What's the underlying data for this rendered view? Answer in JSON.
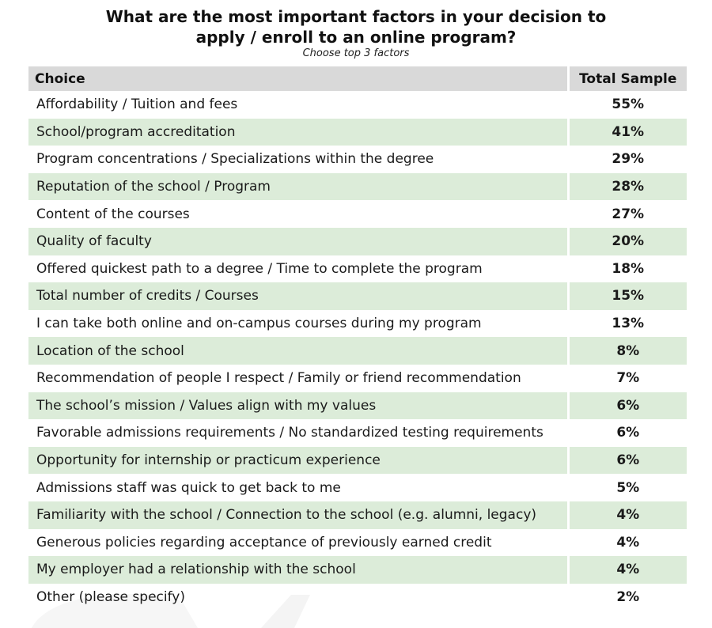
{
  "title_line1": "What are the most important factors in your decision to",
  "title_line2": "apply / enroll to an online program?",
  "subtitle": "Choose top 3 factors",
  "chart_data": {
    "type": "table",
    "columns": [
      "Choice",
      "Total Sample"
    ],
    "rows": [
      {
        "choice": "Affordability / Tuition and fees",
        "value": "55%"
      },
      {
        "choice": "School/program accreditation",
        "value": "41%"
      },
      {
        "choice": "Program concentrations / Specializations within the degree",
        "value": "29%"
      },
      {
        "choice": "Reputation of the school / Program",
        "value": "28%"
      },
      {
        "choice": "Content of the courses",
        "value": "27%"
      },
      {
        "choice": "Quality of faculty",
        "value": "20%"
      },
      {
        "choice": "Offered quickest path to a degree / Time to complete the program",
        "value": "18%"
      },
      {
        "choice": "Total number of credits / Courses",
        "value": "15%"
      },
      {
        "choice": "I can take both online and on-campus courses during my program",
        "value": "13%"
      },
      {
        "choice": "Location of the school",
        "value": "8%"
      },
      {
        "choice": "Recommendation of people I respect / Family or friend recommendation",
        "value": "7%"
      },
      {
        "choice": "The school’s mission / Values align with my values",
        "value": "6%"
      },
      {
        "choice": "Favorable admissions requirements / No standardized testing requirements",
        "value": "6%"
      },
      {
        "choice": "Opportunity for internship or practicum experience",
        "value": "6%"
      },
      {
        "choice": "Admissions staff was quick to get back to me",
        "value": "5%"
      },
      {
        "choice": "Familiarity with the school / Connection to the school (e.g. alumni, legacy)",
        "value": "4%"
      },
      {
        "choice": "Generous policies regarding acceptance of previously earned credit",
        "value": "4%"
      },
      {
        "choice": "My employer had a relationship with the school",
        "value": "4%"
      },
      {
        "choice": "Other (please specify)",
        "value": "2%"
      }
    ]
  },
  "colors": {
    "header_bg": "#d9d9d9",
    "stripe_bg": "#dcecd9",
    "text": "#1a1a1a"
  }
}
